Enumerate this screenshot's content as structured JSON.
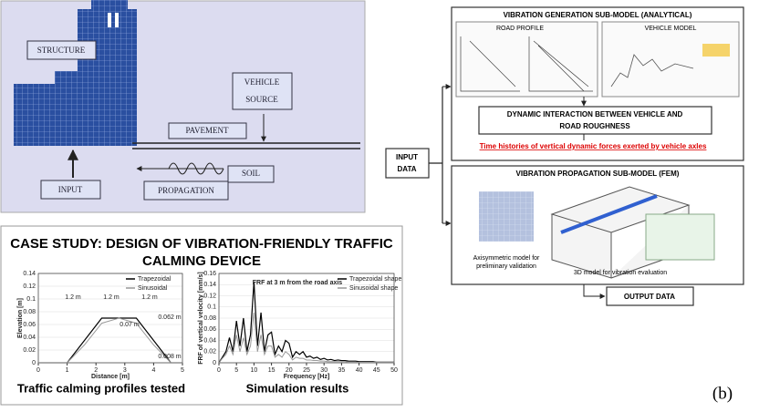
{
  "top_diagram": {
    "structure": "STRUCTURE",
    "vehicle": "VEHICLE",
    "source": "SOURCE",
    "pavement": "PAVEMENT",
    "soil": "SOIL",
    "input": "INPUT",
    "propagation": "PROPAGATION"
  },
  "case_study": {
    "title_line1": "CASE STUDY: DESIGN OF VIBRATION-FRIENDLY TRAFFIC",
    "title_line2": "CALMING DEVICE",
    "charts": [
      {
        "type": "line",
        "xlabel": "Distance [m]",
        "ylabel": "Elevation [m]",
        "caption": "Traffic calming profiles tested",
        "xlim": [
          0,
          5
        ],
        "ylim": [
          0,
          0.14
        ],
        "xticks": [
          0,
          1,
          2,
          3,
          4,
          5
        ],
        "yticks": [
          0,
          0.02,
          0.04,
          0.06,
          0.08,
          0.1,
          0.12,
          0.14
        ],
        "x": [
          0,
          1,
          1.6,
          2.2,
          2.8,
          3.4,
          4,
          4.6,
          5
        ],
        "series": [
          {
            "name": "Trapezoidal",
            "color": "#000000",
            "values": [
              0,
              0,
              0.035,
              0.07,
              0.07,
              0.07,
              0.035,
              0,
              0
            ]
          },
          {
            "name": "Sinusoidal",
            "color": "#999999",
            "values": [
              0,
              0,
              0.028,
              0.062,
              0.07,
              0.062,
              0.028,
              0,
              0
            ]
          }
        ],
        "annotations": [
          "1.2 m",
          "1.2 m",
          "1.2 m",
          "0.07 m",
          "0.062 m",
          "0.008 m"
        ]
      },
      {
        "type": "line",
        "title": "FRF at 3 m from the road axis",
        "xlabel": "Frequency [Hz]",
        "ylabel": "FRF of vertical velocity [mm/s]",
        "caption": "Simulation results",
        "xlim": [
          0,
          50
        ],
        "ylim": [
          0,
          0.16
        ],
        "xticks": [
          0,
          5,
          10,
          15,
          20,
          25,
          30,
          35,
          40,
          45,
          50
        ],
        "yticks": [
          0,
          0.02,
          0.04,
          0.06,
          0.08,
          0.1,
          0.12,
          0.14,
          0.16
        ],
        "x": [
          0,
          1,
          2,
          3,
          4,
          5,
          6,
          7,
          8,
          9,
          10,
          11,
          12,
          13,
          14,
          15,
          16,
          17,
          18,
          19,
          20,
          21,
          22,
          23,
          24,
          25,
          26,
          27,
          28,
          29,
          30,
          31,
          32,
          33,
          34,
          35,
          36,
          37,
          38,
          39,
          40,
          41,
          42,
          43,
          44,
          45,
          46,
          47,
          48,
          49,
          50
        ],
        "series": [
          {
            "name": "Trapezoidal shape",
            "color": "#000000",
            "values": [
              0,
              0.01,
              0.02,
              0.045,
              0.02,
              0.075,
              0.03,
              0.08,
              0.02,
              0.05,
              0.145,
              0.03,
              0.09,
              0.02,
              0.05,
              0.055,
              0.015,
              0.03,
              0.02,
              0.04,
              0.035,
              0.01,
              0.02,
              0.015,
              0.02,
              0.01,
              0.012,
              0.008,
              0.01,
              0.006,
              0.008,
              0.005,
              0.006,
              0.004,
              0.005,
              0.004,
              0.004,
              0.003,
              0.003,
              0.003,
              0.002,
              0.002,
              0.002,
              0.002,
              0.002,
              0.001,
              0.001,
              0.001,
              0.001,
              0.001,
              0.001
            ]
          },
          {
            "name": "Sinusoidal shape",
            "color": "#999999",
            "values": [
              0,
              0.008,
              0.015,
              0.03,
              0.015,
              0.05,
              0.02,
              0.045,
              0.015,
              0.03,
              0.09,
              0.02,
              0.05,
              0.015,
              0.03,
              0.03,
              0.01,
              0.015,
              0.01,
              0.02,
              0.015,
              0.005,
              0.01,
              0.008,
              0.008,
              0.005,
              0.005,
              0.004,
              0.004,
              0.003,
              0.003,
              0.002,
              0.002,
              0.002,
              0.002,
              0.002,
              0.002,
              0.001,
              0.001,
              0.001,
              0.001,
              0.001,
              0.001,
              0.001,
              0.001,
              0.001,
              0.001,
              0.001,
              0.001,
              0.001,
              0.001
            ]
          }
        ]
      }
    ]
  },
  "flowchart": {
    "input_data": [
      "INPUT",
      "DATA"
    ],
    "generation_title": "VIBRATION GENERATION SUB-MODEL (ANALYTICAL)",
    "road_profile": "ROAD PROFILE",
    "vehicle_model": "VEHICLE MODEL",
    "interaction": [
      "DYNAMIC INTERACTION BETWEEN VEHICLE AND",
      "ROAD ROUGHNESS"
    ],
    "forces": "Time histories of vertical dynamic forces exerted by vehicle axles",
    "propagation_title": "VIBRATION PROPAGATION SUB-MODEL (FEM)",
    "axisymmetric": [
      "Axisymmetric model for",
      "preliminary validation"
    ],
    "model_3d": "3D model for vibration evaluation",
    "output_data": "OUTPUT DATA"
  },
  "panel_label": "(b)"
}
